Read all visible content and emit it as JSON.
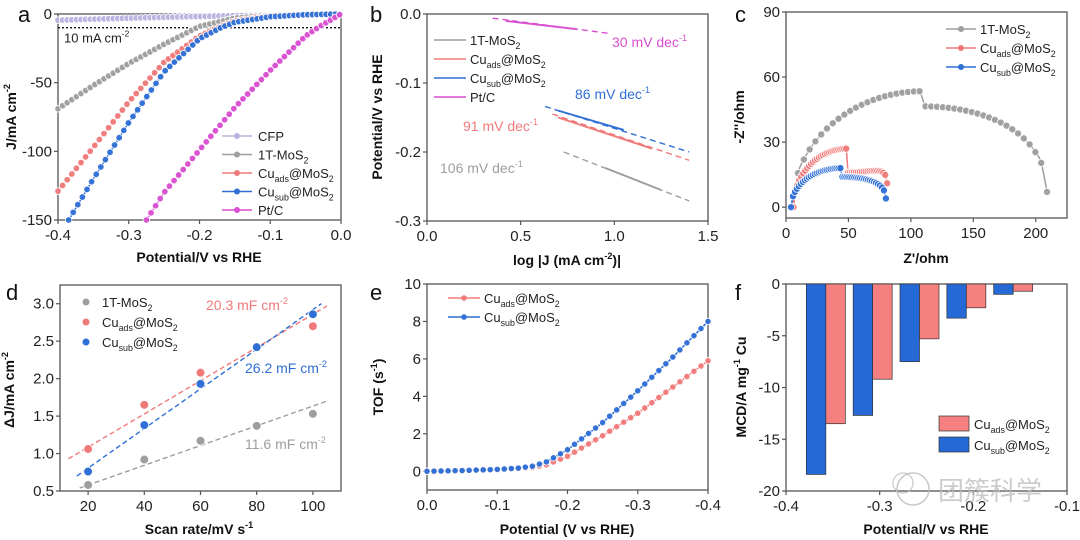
{
  "colors": {
    "cfp": "#b7b3e0",
    "mos2": "#9e9e9e",
    "ads": "#f07a7a",
    "sub": "#2f6fd6",
    "ptc": "#d94fd1",
    "ads_bar": "#f67f7f",
    "sub_bar": "#2569d6"
  },
  "watermark": "团簇科学",
  "chart_data": [
    {
      "panel": "a",
      "type": "line",
      "xlabel": "Potential/V vs RHE",
      "ylabel": "J/mA cm-2",
      "ylabel_main": "J/mA cm",
      "ylabel_sup": "-2",
      "xlim": [
        -0.4,
        0.0
      ],
      "ylim": [
        -150,
        0
      ],
      "xticks": [
        -0.4,
        -0.3,
        -0.2,
        -0.1,
        0.0
      ],
      "xtick_labels": [
        "-0.4",
        "-0.3",
        "-0.2",
        "-0.1",
        "0.0"
      ],
      "yticks": [
        0,
        -50,
        -100,
        -150
      ],
      "ytick_labels": [
        "0",
        "-50",
        "-100",
        "-150"
      ],
      "reference_line": {
        "y": -10,
        "label": "10 mA cm",
        "label_sup": "-2"
      },
      "legend": {
        "position": "bottom-right"
      },
      "series": [
        {
          "name": "CFP",
          "key": "cfp",
          "label_main": "CFP",
          "label_sub": "",
          "label_tail": "",
          "x": [
            -0.4,
            -0.3,
            -0.2,
            -0.1,
            0.0
          ],
          "y": [
            -4.5,
            -3,
            -1.8,
            -0.7,
            0
          ]
        },
        {
          "name": "1T-MoS2",
          "key": "mos2",
          "label_main": "1T-MoS",
          "label_sub": "2",
          "label_tail": "",
          "sub_is_sub": true,
          "x": [
            -0.4,
            -0.35,
            -0.3,
            -0.25,
            -0.2,
            -0.15,
            -0.1,
            -0.05,
            0.0
          ],
          "y": [
            -69,
            -52,
            -36,
            -22,
            -9,
            -3,
            -1,
            -0.3,
            0
          ]
        },
        {
          "name": "Cuads@MoS2",
          "key": "ads",
          "label_main": "Cu",
          "label_sub": "ads",
          "label_tail": "@MoS",
          "x": [
            -0.4,
            -0.35,
            -0.3,
            -0.25,
            -0.2,
            -0.17,
            -0.15,
            -0.1,
            -0.05,
            0.0
          ],
          "y": [
            -129,
            -97,
            -64,
            -35,
            -16,
            -9,
            -5,
            -1.5,
            -0.3,
            0
          ]
        },
        {
          "name": "Cusub@MoS2",
          "key": "sub",
          "label_main": "Cu",
          "label_sub": "sub",
          "label_tail": "@MoS",
          "x": [
            -0.385,
            -0.35,
            -0.3,
            -0.25,
            -0.2,
            -0.17,
            -0.15,
            -0.1,
            -0.05,
            0.0
          ],
          "y": [
            -150,
            -120,
            -79,
            -42,
            -18,
            -10,
            -6,
            -2,
            -0.5,
            0
          ]
        },
        {
          "name": "Pt/C",
          "key": "ptc",
          "label_main": "Pt/C",
          "label_sub": "",
          "label_tail": "",
          "x": [
            -0.275,
            -0.25,
            -0.2,
            -0.15,
            -0.1,
            -0.05,
            -0.03,
            0.0
          ],
          "y": [
            -150,
            -130,
            -99,
            -68,
            -41,
            -16,
            -9,
            0
          ]
        }
      ]
    },
    {
      "panel": "b",
      "type": "line",
      "xlabel": "log |J (mA cm-2)|",
      "xlabel_main": "log |J (mA cm",
      "xlabel_sup": "-2",
      "xlabel_tail": ")|",
      "ylabel": "Potential/V vs RHE",
      "xlim": [
        0.0,
        1.5
      ],
      "ylim": [
        -0.3,
        0.0
      ],
      "xticks": [
        0.0,
        0.5,
        1.0,
        1.5
      ],
      "xtick_labels": [
        "0.0",
        "0.5",
        "1.0",
        "1.5"
      ],
      "yticks": [
        0.0,
        -0.1,
        -0.2,
        -0.3
      ],
      "ytick_labels": [
        "0.0",
        "-0.1",
        "-0.2",
        "-0.3"
      ],
      "legend": {
        "position": "top-left"
      },
      "series": [
        {
          "name": "1T-MoS2",
          "key": "mos2",
          "label_main": "1T-MoS",
          "label_sub": "2",
          "label_tail": "",
          "sub_is_sub": true,
          "solid": [
            [
              0.95,
              -0.223
            ],
            [
              1.25,
              -0.255
            ]
          ],
          "fit": [
            [
              0.73,
              -0.2
            ],
            [
              1.4,
              -0.271
            ]
          ],
          "tafel": "106 mV dec",
          "tafel_sup": "-1"
        },
        {
          "name": "Cuads@MoS2",
          "key": "ads",
          "label_main": "Cu",
          "label_sub": "ads",
          "label_tail": "@MoS",
          "solid": [
            [
              0.7,
              -0.15
            ],
            [
              1.2,
              -0.195
            ]
          ],
          "fit": [
            [
              0.67,
              -0.145
            ],
            [
              1.4,
              -0.212
            ]
          ],
          "tafel": "91 mV dec",
          "tafel_sup": "-1"
        },
        {
          "name": "Cusub@MoS2",
          "key": "sub",
          "label_main": "Cu",
          "label_sub": "sub",
          "label_tail": "@MoS",
          "solid": [
            [
              0.7,
              -0.14
            ],
            [
              1.05,
              -0.168
            ]
          ],
          "fit": [
            [
              0.63,
              -0.134
            ],
            [
              1.4,
              -0.2
            ]
          ],
          "tafel": "86 mV dec",
          "tafel_sup": "-1"
        },
        {
          "name": "Pt/C",
          "key": "ptc",
          "label_main": "Pt/C",
          "label_sub": "",
          "label_tail": "",
          "solid": [
            [
              0.42,
              -0.01
            ],
            [
              0.8,
              -0.022
            ]
          ],
          "fit": [
            [
              0.35,
              -0.006
            ],
            [
              0.97,
              -0.028
            ]
          ],
          "tafel": "30 mV dec",
          "tafel_sup": "-1"
        }
      ]
    },
    {
      "panel": "c",
      "type": "scatter",
      "xlabel": "Z'/ohm",
      "ylabel": "-Z''/ohm",
      "xlim": [
        0,
        225
      ],
      "ylim": [
        -5,
        90
      ],
      "xticks": [
        0,
        50,
        100,
        150,
        200
      ],
      "xtick_labels": [
        "0",
        "50",
        "100",
        "150",
        "200"
      ],
      "yticks": [
        0,
        30,
        60,
        90
      ],
      "ytick_labels": [
        "0",
        "30",
        "60",
        "90"
      ],
      "legend": {
        "position": "top-right"
      },
      "series": [
        {
          "name": "1T-MoS2",
          "key": "mos2",
          "label_main": "1T-MoS",
          "label_sub": "2",
          "label_tail": "",
          "sub_is_sub": true,
          "arc": {
            "x_start": 5,
            "x_end": 209,
            "center_x": 110,
            "peak": 53.5,
            "end_y": 7
          }
        },
        {
          "name": "Cuads@MoS2",
          "key": "ads",
          "label_main": "Cu",
          "label_sub": "ads",
          "label_tail": "@MoS",
          "arc": {
            "x_start": 6,
            "x_end": 81,
            "center_x": 49,
            "peak": 27,
            "end_y": 11
          }
        },
        {
          "name": "Cusub@MoS2",
          "key": "sub",
          "label_main": "Cu",
          "label_sub": "sub",
          "label_tail": "@MoS",
          "arc": {
            "x_start": 4,
            "x_end": 80,
            "center_x": 44,
            "peak": 18,
            "end_y": 4
          }
        }
      ]
    },
    {
      "panel": "d",
      "type": "scatter",
      "xlabel": "Scan rate/mV s-1",
      "xlabel_main": "Scan rate/mV s",
      "xlabel_sup": "-1",
      "ylabel": "ΔJ/mA cm-2",
      "ylabel_main": "ΔJ/mA cm",
      "ylabel_sup": "-2",
      "xlim": [
        10,
        110
      ],
      "ylim": [
        0.5,
        3.25
      ],
      "xticks": [
        20,
        40,
        60,
        80,
        100
      ],
      "xtick_labels": [
        "20",
        "40",
        "60",
        "80",
        "100"
      ],
      "yticks": [
        0.5,
        1.0,
        1.5,
        2.0,
        2.5,
        3.0
      ],
      "ytick_labels": [
        "0.5",
        "1.0",
        "1.5",
        "2.0",
        "2.5",
        "3.0"
      ],
      "legend": {
        "position": "top-left"
      },
      "series": [
        {
          "name": "1T-MoS2",
          "key": "mos2",
          "label_main": "1T-MoS",
          "label_sub": "2",
          "label_tail": "",
          "sub_is_sub": true,
          "x": [
            20,
            40,
            60,
            80,
            100
          ],
          "y": [
            0.58,
            0.92,
            1.17,
            1.37,
            1.53
          ],
          "fit": [
            [
              17,
              0.54
            ],
            [
              105,
              1.7
            ]
          ],
          "cdl": "11.6 mF cm",
          "cdl_sup": "-2"
        },
        {
          "name": "Cuads@MoS2",
          "key": "ads",
          "label_main": "Cu",
          "label_sub": "ads",
          "label_tail": "@MoS",
          "x": [
            20,
            40,
            60,
            80,
            100
          ],
          "y": [
            1.06,
            1.65,
            2.08,
            2.42,
            2.7
          ],
          "fit": [
            [
              13,
              0.93
            ],
            [
              105,
              2.97
            ]
          ],
          "cdl": "20.3 mF cm",
          "cdl_sup": "-2"
        },
        {
          "name": "Cusub@MoS2",
          "key": "sub",
          "label_main": "Cu",
          "label_sub": "sub",
          "label_tail": "@MoS",
          "x": [
            20,
            40,
            60,
            80,
            100
          ],
          "y": [
            0.76,
            1.38,
            1.93,
            2.42,
            2.86
          ],
          "fit": [
            [
              16,
              0.7
            ],
            [
              103,
              3.0
            ]
          ],
          "cdl": "26.2 mF cm",
          "cdl_sup": "-2"
        }
      ]
    },
    {
      "panel": "e",
      "type": "line",
      "xlabel": "Potential (V vs RHE)",
      "ylabel": "TOF (s-1)",
      "ylabel_main": "TOF (s",
      "ylabel_sup": "-1",
      "ylabel_tail": ")",
      "xlim": [
        0.0,
        -0.4
      ],
      "ylim": [
        -1,
        10
      ],
      "xticks": [
        0.0,
        -0.1,
        -0.2,
        -0.3,
        -0.4
      ],
      "xtick_labels": [
        "0.0",
        "-0.1",
        "-0.2",
        "-0.3",
        "-0.4"
      ],
      "yticks": [
        0,
        2,
        4,
        6,
        8,
        10
      ],
      "ytick_labels": [
        "0",
        "2",
        "4",
        "6",
        "8",
        "10"
      ],
      "legend": {
        "position": "top-left"
      },
      "series": [
        {
          "name": "Cuads@MoS2",
          "key": "ads",
          "label_main": "Cu",
          "label_sub": "ads",
          "label_tail": "@MoS",
          "x": [
            0,
            -0.05,
            -0.1,
            -0.13,
            -0.15,
            -0.17,
            -0.2,
            -0.25,
            -0.3,
            -0.35,
            -0.4
          ],
          "y": [
            0,
            0.03,
            0.08,
            0.13,
            0.2,
            0.35,
            0.8,
            1.9,
            3.1,
            4.5,
            5.9
          ]
        },
        {
          "name": "Cusub@MoS2",
          "key": "sub",
          "label_main": "Cu",
          "label_sub": "sub",
          "label_tail": "@MoS",
          "x": [
            0,
            -0.05,
            -0.1,
            -0.13,
            -0.15,
            -0.17,
            -0.2,
            -0.25,
            -0.3,
            -0.35,
            -0.4
          ],
          "y": [
            0,
            0.04,
            0.1,
            0.17,
            0.27,
            0.5,
            1.15,
            2.6,
            4.3,
            6.1,
            8.0
          ]
        }
      ]
    },
    {
      "panel": "f",
      "type": "bar",
      "xlabel": "Potential/V vs RHE",
      "ylabel": "MCD/A mg-1 Cu",
      "ylabel_main": "MCD/A mg",
      "ylabel_sup": "-1",
      "ylabel_tail": " Cu",
      "xlim": [
        -0.4,
        -0.1
      ],
      "ylim": [
        -20,
        0
      ],
      "xticks": [
        -0.4,
        -0.3,
        -0.2,
        -0.1
      ],
      "xtick_labels": [
        "-0.4",
        "-0.3",
        "-0.2",
        "-0.1"
      ],
      "yticks": [
        0,
        -5,
        -10,
        -15,
        -20
      ],
      "ytick_labels": [
        "0",
        "-5",
        "-10",
        "-15",
        "-20"
      ],
      "legend": {
        "position": "bottom-right"
      },
      "categories": [
        -0.35,
        -0.3,
        -0.25,
        -0.2,
        -0.15
      ],
      "series": [
        {
          "name": "Cusub@MoS2",
          "key": "sub_bar",
          "label_main": "Cu",
          "label_sub": "sub",
          "label_tail": "@MoS",
          "values": [
            -18.4,
            -12.7,
            -7.5,
            -3.3,
            -1.0
          ]
        },
        {
          "name": "Cuads@MoS2",
          "key": "ads_bar",
          "label_main": "Cu",
          "label_sub": "ads",
          "label_tail": "@MoS",
          "values": [
            -13.5,
            -9.2,
            -5.3,
            -2.3,
            -0.7
          ]
        }
      ]
    }
  ]
}
